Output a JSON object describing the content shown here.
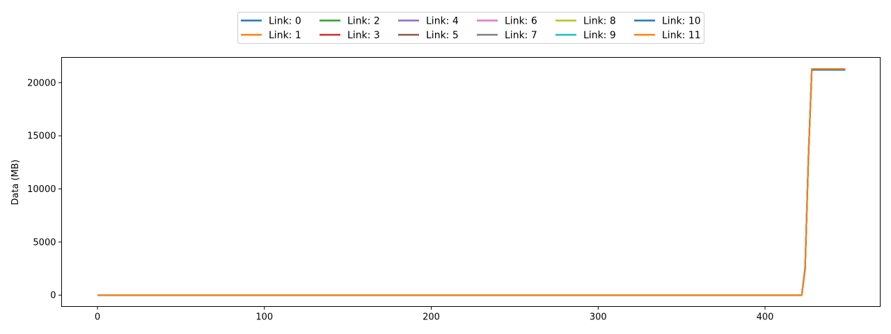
{
  "chart_data": {
    "type": "line",
    "title": "",
    "xlabel": "",
    "ylabel": "Data (MB)",
    "xlim": [
      -21.5,
      469
    ],
    "ylim": [
      -1070,
      22380
    ],
    "x_ticks": [
      0,
      100,
      200,
      300,
      400
    ],
    "y_ticks": [
      0,
      5000,
      10000,
      15000,
      20000
    ],
    "x_tick_labels": [
      "0",
      "100",
      "200",
      "300",
      "400"
    ],
    "y_tick_labels": [
      "0",
      "5000",
      "10000",
      "15000",
      "20000"
    ],
    "grid": false,
    "legend_placement": "top-center",
    "legend_columns": 6,
    "series": [
      {
        "name": "Link: 0",
        "color": "#1f77b4",
        "x": [
          0,
          422,
          424,
          426,
          428,
          448
        ],
        "y": [
          0,
          0,
          2500,
          13000,
          21200,
          21200
        ]
      },
      {
        "name": "Link: 1",
        "color": "#ff7f0e",
        "x": [
          0,
          422,
          424,
          426,
          428,
          448
        ],
        "y": [
          0,
          0,
          2700,
          13200,
          21300,
          21300
        ]
      },
      {
        "name": "Link: 2",
        "color": "#2ca02c",
        "x": [
          0,
          422,
          424,
          426,
          428,
          448
        ],
        "y": [
          0,
          0,
          2500,
          13000,
          21200,
          21200
        ]
      },
      {
        "name": "Link: 3",
        "color": "#d62728",
        "x": [
          0,
          422,
          424,
          426,
          428,
          448
        ],
        "y": [
          0,
          0,
          2600,
          13100,
          21250,
          21250
        ]
      },
      {
        "name": "Link: 4",
        "color": "#9467bd",
        "x": [
          0,
          422,
          424,
          426,
          428,
          448
        ],
        "y": [
          0,
          0,
          2500,
          13000,
          21200,
          21200
        ]
      },
      {
        "name": "Link: 5",
        "color": "#8c564b",
        "x": [
          0,
          422,
          424,
          426,
          428,
          448
        ],
        "y": [
          0,
          0,
          2600,
          13100,
          21250,
          21250
        ]
      },
      {
        "name": "Link: 6",
        "color": "#e377c2",
        "x": [
          0,
          422,
          424,
          426,
          428,
          448
        ],
        "y": [
          0,
          0,
          2500,
          13000,
          21200,
          21200
        ]
      },
      {
        "name": "Link: 7",
        "color": "#7f7f7f",
        "x": [
          0,
          422,
          424,
          426,
          428,
          448
        ],
        "y": [
          0,
          0,
          2600,
          13100,
          21250,
          21250
        ]
      },
      {
        "name": "Link: 8",
        "color": "#bcbd22",
        "x": [
          0,
          422,
          424,
          426,
          428,
          448
        ],
        "y": [
          0,
          0,
          2500,
          13000,
          21200,
          21200
        ]
      },
      {
        "name": "Link: 9",
        "color": "#17becf",
        "x": [
          0,
          422,
          424,
          426,
          428,
          448
        ],
        "y": [
          0,
          0,
          2600,
          13100,
          21250,
          21250
        ]
      },
      {
        "name": "Link: 10",
        "color": "#1f77b4",
        "x": [
          0,
          422,
          424,
          426,
          428,
          448
        ],
        "y": [
          0,
          0,
          2500,
          13000,
          21200,
          21200
        ]
      },
      {
        "name": "Link: 11",
        "color": "#ff7f0e",
        "x": [
          0,
          422,
          424,
          426,
          428,
          448
        ],
        "y": [
          0,
          0,
          2700,
          13200,
          21300,
          21300
        ]
      }
    ]
  }
}
